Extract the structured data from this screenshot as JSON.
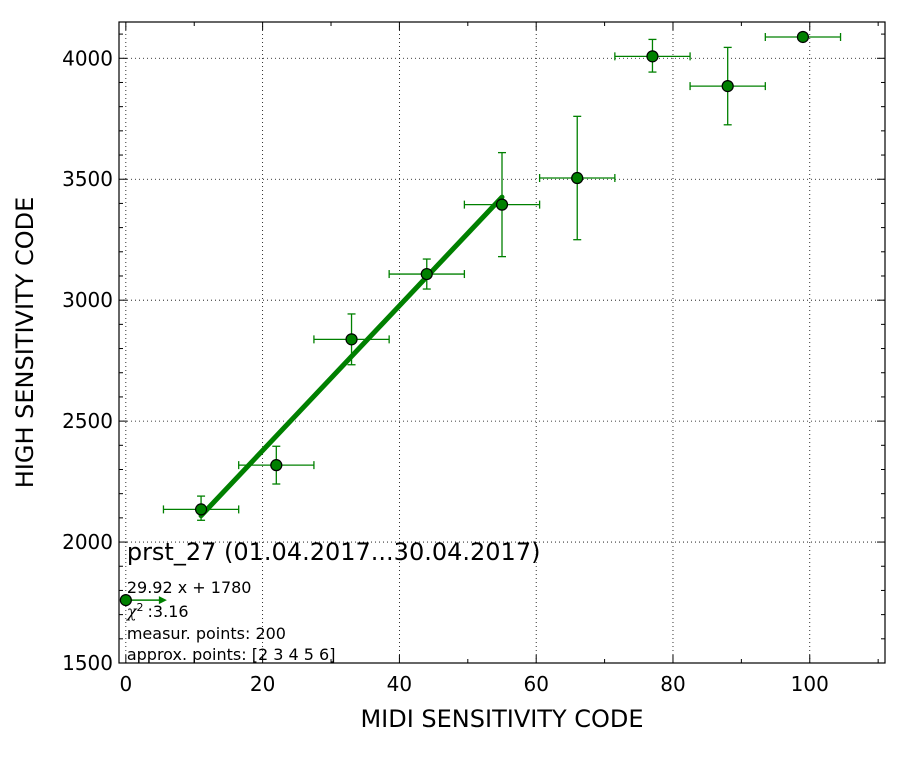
{
  "chart_data": {
    "type": "scatter",
    "title": "",
    "xlabel": "MIDI SENSITIVITY CODE",
    "ylabel": "HIGH SENSITIVITY CODE",
    "xlim": [
      -1,
      111
    ],
    "ylim": [
      1500,
      4150
    ],
    "xticks": [
      0,
      20,
      40,
      60,
      80,
      100
    ],
    "xtick_labels": [
      "0",
      "20",
      "40",
      "60",
      "80",
      "100"
    ],
    "yticks": [
      1500,
      2000,
      2500,
      3000,
      3500,
      4000
    ],
    "ytick_labels": [
      "1500",
      "2000",
      "2500",
      "3000",
      "3500",
      "4000"
    ],
    "grid": true,
    "colors": {
      "points": "#008000",
      "edge": "#000000",
      "fit": "#008000"
    },
    "series": [
      {
        "x": [
          0,
          11,
          22,
          33,
          44,
          55,
          66,
          77,
          88,
          99
        ],
        "y": [
          1760,
          2135,
          2318,
          2838,
          3108,
          3395,
          3505,
          4008,
          3885,
          4088
        ],
        "xerr": [
          [
            0,
            0
          ],
          [
            5.5,
            5.5
          ],
          [
            5.5,
            5.5
          ],
          [
            5.5,
            5.5
          ],
          [
            5.5,
            5.5
          ],
          [
            5.5,
            5.5
          ],
          [
            5.5,
            5.5
          ],
          [
            5.5,
            5.5
          ],
          [
            5.5,
            5.5
          ],
          [
            5.5,
            5.5
          ]
        ],
        "yerr": [
          [
            0,
            0
          ],
          [
            45,
            55
          ],
          [
            78,
            78
          ],
          [
            105,
            105
          ],
          [
            62,
            62
          ],
          [
            215,
            215
          ],
          [
            255,
            255
          ],
          [
            65,
            70
          ],
          [
            160,
            160
          ],
          [
            0,
            0
          ]
        ]
      }
    ],
    "fit_line": {
      "x": [
        11,
        55
      ],
      "y": [
        2109,
        3426
      ]
    },
    "arrow": {
      "x": [
        0,
        6
      ],
      "y": [
        1760,
        1760
      ]
    },
    "annotations": {
      "title_line": "prst_27 (01.04.2017...30.04.2017)",
      "equation": "29.92 x + 1780",
      "chi_symbol": "χ",
      "chi_sup": "2",
      "chi_value": ":3.16",
      "measured": "measur. points: 200",
      "approx": "approx. points: [2 3 4 5 6]"
    }
  }
}
